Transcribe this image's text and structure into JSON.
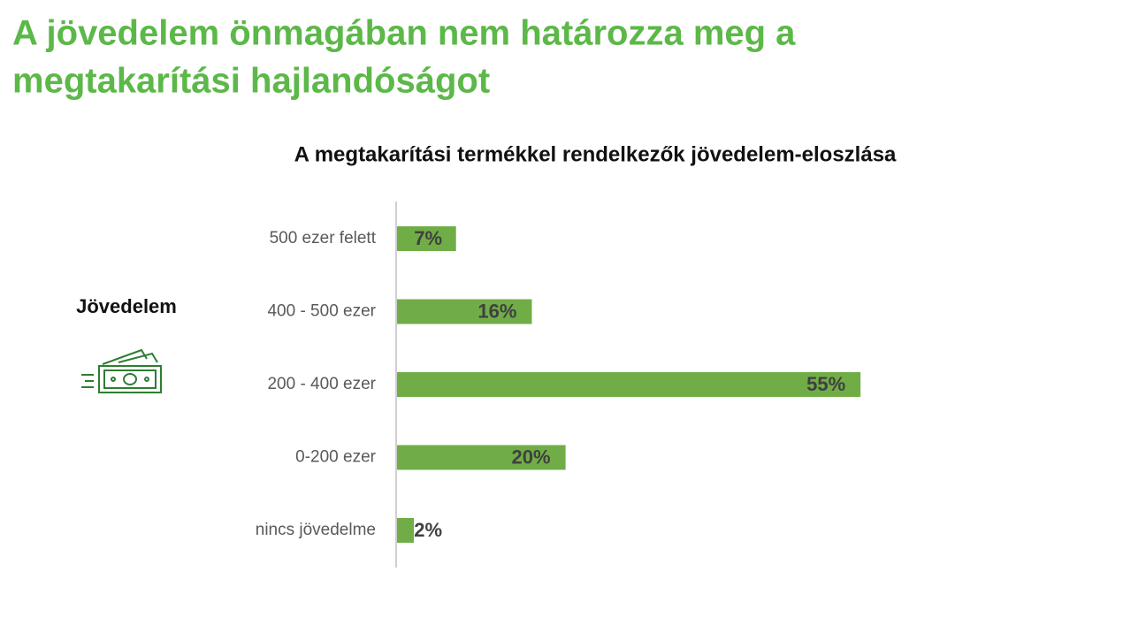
{
  "slide_title": [
    "A jövedelem önmagában nem határozza meg a",
    "megtakarítási hajlandóságot"
  ],
  "side_label": "Jövedelem",
  "chart_data": {
    "type": "bar",
    "orientation": "horizontal",
    "title": "A megtakarítási termékkel rendelkezők jövedelem-eloszlása",
    "categories": [
      "500 ezer felett",
      "400 - 500 ezer",
      "200 - 400 ezer",
      "0-200 ezer",
      "nincs jövedelme"
    ],
    "values": [
      7,
      16,
      55,
      20,
      2
    ],
    "value_labels": [
      "7%",
      "16%",
      "55%",
      "20%",
      "2%"
    ],
    "color": "#70ad47"
  }
}
